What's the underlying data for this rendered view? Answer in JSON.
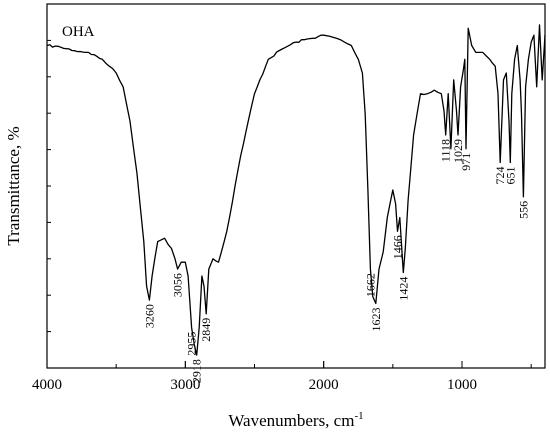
{
  "chart_data": {
    "type": "line",
    "title": "",
    "series_label": "OHA",
    "xlabel": "Wavenumbers, cm",
    "xlabel_superscript": "-1",
    "ylabel": "Transmittance, %",
    "xlim": [
      4000,
      400
    ],
    "x_reversed": true,
    "ylim": [
      0,
      100
    ],
    "y_tick_labels_shown": false,
    "grid": false,
    "x_ticks": [
      4000,
      3000,
      2000,
      1000
    ],
    "x_tick_labels": [
      "4000",
      "3000",
      "2000",
      "1000"
    ],
    "series": [
      {
        "x": [
          4000,
          3900,
          3800,
          3700,
          3600,
          3550,
          3500,
          3450,
          3400,
          3350,
          3300,
          3280,
          3260,
          3240,
          3200,
          3150,
          3100,
          3075,
          3056,
          3030,
          3000,
          2980,
          2955,
          2935,
          2918,
          2900,
          2880,
          2865,
          2849,
          2830,
          2800,
          2760,
          2700,
          2600,
          2500,
          2400,
          2300,
          2200,
          2100,
          2000,
          1900,
          1850,
          1800,
          1750,
          1720,
          1700,
          1680,
          1662,
          1645,
          1623,
          1600,
          1570,
          1540,
          1500,
          1480,
          1466,
          1450,
          1424,
          1410,
          1390,
          1350,
          1300,
          1250,
          1200,
          1150,
          1130,
          1118,
          1100,
          1080,
          1060,
          1040,
          1029,
          1010,
          990,
          980,
          971,
          955,
          930,
          900,
          850,
          800,
          760,
          740,
          724,
          700,
          680,
          660,
          651,
          640,
          620,
          600,
          580,
          570,
          556,
          540,
          520,
          500,
          480,
          460,
          440,
          420,
          400
        ],
        "y": [
          92,
          91.5,
          90.5,
          90,
          88,
          86,
          84,
          80,
          70,
          55,
          35,
          22,
          18,
          25,
          35,
          36,
          33,
          30,
          27,
          29,
          29,
          25,
          10,
          5,
          2,
          10,
          25,
          22,
          14,
          27,
          30,
          29,
          38,
          60,
          78,
          88,
          91,
          93,
          94,
          95,
          94,
          93,
          92,
          88,
          84,
          72,
          50,
          27,
          19,
          17,
          27,
          32,
          42,
          50,
          46,
          38,
          42,
          26,
          33,
          47,
          66,
          78,
          78,
          79,
          78,
          73,
          66,
          78,
          62,
          82,
          73,
          66,
          80,
          85,
          88,
          62,
          97,
          92,
          90,
          90,
          88,
          86,
          78,
          58,
          82,
          84,
          70,
          58,
          78,
          88,
          92,
          82,
          72,
          48,
          80,
          88,
          93,
          95,
          80,
          98,
          82,
          95
        ]
      }
    ],
    "peak_labels": [
      {
        "x": 3260,
        "text": "3260"
      },
      {
        "x": 3056,
        "text": "3056"
      },
      {
        "x": 2955,
        "text": "2955"
      },
      {
        "x": 2918,
        "text": "2918"
      },
      {
        "x": 2849,
        "text": "2849"
      },
      {
        "x": 1662,
        "text": "1662"
      },
      {
        "x": 1623,
        "text": "1623"
      },
      {
        "x": 1466,
        "text": "1466"
      },
      {
        "x": 1424,
        "text": "1424"
      },
      {
        "x": 1118,
        "text": "1118"
      },
      {
        "x": 1029,
        "text": "1029"
      },
      {
        "x": 971,
        "text": "971"
      },
      {
        "x": 724,
        "text": "724"
      },
      {
        "x": 651,
        "text": "651"
      },
      {
        "x": 556,
        "text": "556"
      }
    ]
  }
}
